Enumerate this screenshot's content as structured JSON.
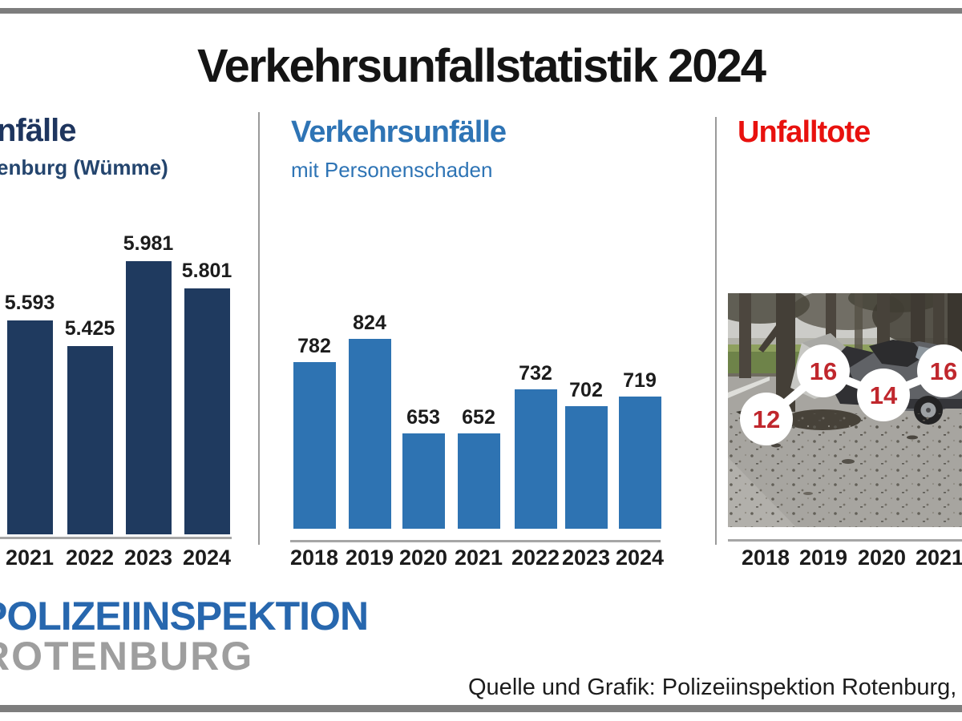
{
  "header": {
    "title": "Verkehrsunfallstatistik 2024"
  },
  "footer": {
    "logo_line1": "POLIZEIINSPEKTION",
    "logo_line2": "ROTENBURG",
    "source_note": "Quelle und Grafik: Polizeiinspektion Rotenburg, Ö"
  },
  "colors": {
    "accent_navy": "#1e355e",
    "accent_blue": "#2e74b5",
    "accent_red": "#e8110e",
    "marker_number_red": "#c0272d",
    "bar_dark_navy": "#1f3a5f",
    "bar_blue": "#2e73b2",
    "logo_blue": "#2767ae",
    "logo_gray": "#9e9e9e",
    "frame_gray": "#7d7d7d",
    "axis_gray": "#a6a6a6"
  },
  "chart_data": [
    {
      "type": "bar",
      "panel": "left",
      "title_visible_fragment": "nfälle",
      "subtitle_visible_fragment": "enburg (Wümme)",
      "categories": [
        "2021",
        "2022",
        "2023",
        "2024"
      ],
      "values": [
        5593,
        5425,
        5981,
        5801
      ],
      "value_labels": [
        "5.593",
        "5.425",
        "5.981",
        "5.801"
      ],
      "ylim": [
        4200,
        6100
      ],
      "bar_color": "#1f3a5f"
    },
    {
      "type": "bar",
      "panel": "middle",
      "title": "Verkehrsunfälle",
      "subtitle": "mit Personenschaden",
      "categories": [
        "2018",
        "2019",
        "2020",
        "2021",
        "2022",
        "2023",
        "2024"
      ],
      "values": [
        782,
        824,
        653,
        652,
        732,
        702,
        719
      ],
      "value_labels": [
        "782",
        "824",
        "653",
        "652",
        "732",
        "702",
        "719"
      ],
      "ylim": [
        480,
        880
      ],
      "bar_color": "#2e73b2"
    },
    {
      "type": "line",
      "panel": "right",
      "title": "Unfalltote",
      "categories": [
        "2018",
        "2019",
        "2020",
        "2021"
      ],
      "values": [
        12,
        16,
        14,
        16
      ],
      "value_labels": [
        "12",
        "16",
        "14",
        "16"
      ],
      "ylim": [
        10,
        18
      ],
      "marker": "white-circle-red-number",
      "background_photo": "car-crash-scene"
    }
  ]
}
